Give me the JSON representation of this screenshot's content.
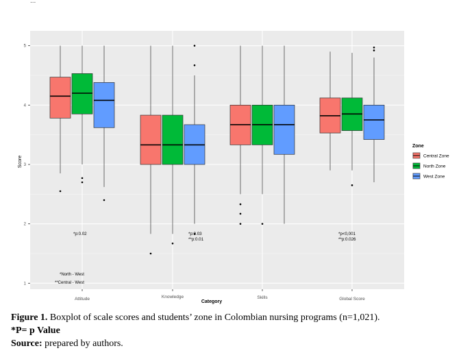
{
  "header_fragment": "...",
  "chart_data": {
    "type": "boxplot",
    "xlabel": "Category",
    "ylabel": "Score",
    "ylim": [
      0.9,
      5.25
    ],
    "yticks": [
      1,
      2,
      3,
      4,
      5
    ],
    "ytick_labels": [
      "1",
      "2",
      "3",
      "4",
      "5"
    ],
    "categories": [
      "Attitude",
      "Knowledge",
      "Skills",
      "Global Score"
    ],
    "background": "#ebebeb",
    "grid": true,
    "legend": {
      "title": "Zone",
      "position": "right",
      "entries": [
        "Central Zone",
        "North Zone",
        "West Zone"
      ]
    },
    "series": [
      {
        "name": "Central Zone",
        "color": "#f8766d",
        "boxes": [
          {
            "min": 2.85,
            "q1": 3.78,
            "median": 4.15,
            "q3": 4.47,
            "max": 5.0,
            "outliers": [
              2.55
            ]
          },
          {
            "min": 1.83,
            "q1": 3.0,
            "median": 3.33,
            "q3": 3.83,
            "max": 5.0,
            "outliers": [
              1.5
            ]
          },
          {
            "min": 2.5,
            "q1": 3.33,
            "median": 3.67,
            "q3": 4.0,
            "max": 5.0,
            "outliers": [
              2.33,
              2.17,
              2.0
            ]
          },
          {
            "min": 2.9,
            "q1": 3.53,
            "median": 3.82,
            "q3": 4.12,
            "max": 4.9,
            "outliers": []
          }
        ]
      },
      {
        "name": "North Zone",
        "color": "#00ba38",
        "boxes": [
          {
            "min": 3.0,
            "q1": 3.85,
            "median": 4.2,
            "q3": 4.53,
            "max": 5.0,
            "outliers": [
              2.77,
              2.7
            ]
          },
          {
            "min": 1.83,
            "q1": 3.0,
            "median": 3.33,
            "q3": 3.83,
            "max": 5.0,
            "outliers": [
              1.67
            ]
          },
          {
            "min": 2.5,
            "q1": 3.33,
            "median": 3.67,
            "q3": 4.0,
            "max": 5.0,
            "outliers": [
              2.0
            ]
          },
          {
            "min": 2.9,
            "q1": 3.57,
            "median": 3.85,
            "q3": 4.12,
            "max": 4.88,
            "outliers": [
              2.65
            ]
          }
        ]
      },
      {
        "name": "West Zone",
        "color": "#619cff",
        "boxes": [
          {
            "min": 2.62,
            "q1": 3.62,
            "median": 4.08,
            "q3": 4.38,
            "max": 5.0,
            "outliers": [
              2.4
            ]
          },
          {
            "min": 2.0,
            "q1": 3.0,
            "median": 3.33,
            "q3": 3.67,
            "max": 4.5,
            "outliers": [
              5.0,
              4.67,
              1.83
            ]
          },
          {
            "min": 2.0,
            "q1": 3.17,
            "median": 3.67,
            "q3": 4.0,
            "max": 5.0,
            "outliers": []
          },
          {
            "min": 2.7,
            "q1": 3.42,
            "median": 3.75,
            "q3": 4.0,
            "max": 4.8,
            "outliers": [
              4.97,
              4.92
            ]
          }
        ]
      }
    ],
    "annotations": {
      "attitude": [
        "*p:0.02"
      ],
      "knowledge": [
        "*p:0.03",
        "**p:0.01"
      ],
      "global": [
        "*p<0,001",
        "**p:0.026"
      ],
      "legend_notes": [
        "*North - West",
        "**Central - West"
      ]
    }
  },
  "caption": {
    "figure_label": "Figure 1.",
    "figure_text": " Boxplot of scale scores and students’ zone in Colombian nursing programs (n=1,021).",
    "pvalue_line": "*P= p Value",
    "source_label": "Source:",
    "source_text": " prepared by authors."
  }
}
